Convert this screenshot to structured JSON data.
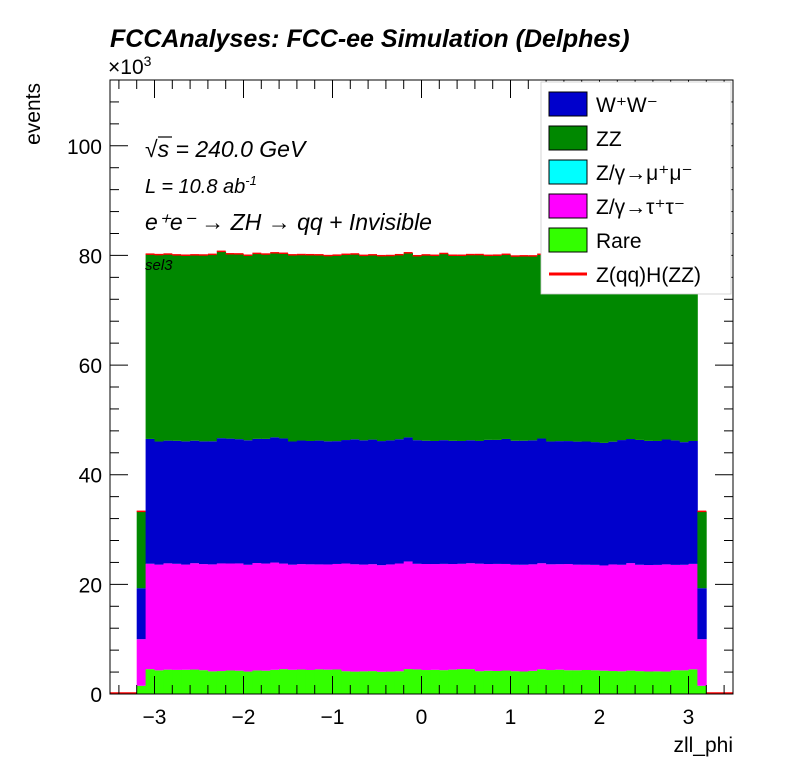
{
  "chart_data": {
    "type": "stacked-histogram",
    "title": "FCCAnalyses: FCC-ee Simulation (Delphes)",
    "xlabel": "zll_phi",
    "ylabel": "events",
    "y_multiplier": "×10³",
    "xlim": [
      -3.5,
      3.5
    ],
    "ylim": [
      0,
      112
    ],
    "x_ticks": [
      -3,
      -2,
      -1,
      0,
      1,
      2,
      3
    ],
    "x_tick_labels": [
      "−3",
      "−2",
      "−1",
      "0",
      "1",
      "2",
      "3"
    ],
    "y_ticks": [
      0,
      20,
      40,
      60,
      80,
      100
    ],
    "y_tick_labels": [
      "0",
      "20",
      "40",
      "60",
      "80",
      "100"
    ],
    "annotations": {
      "sqrt_s": "= 240.0 GeV",
      "lumi": "L = 10.8 ab",
      "lumi_exp": "-1",
      "process": "e⁺e⁻ → ZH → qq + Invisible",
      "selection": "sel3"
    },
    "legend": {
      "position": "top-right",
      "entries": [
        {
          "label": "W⁺W⁻",
          "color": "#0000cc",
          "style": "fill"
        },
        {
          "label": "ZZ",
          "color": "#008800",
          "style": "fill"
        },
        {
          "label": "Z/γ→μ⁺μ⁻",
          "color": "#00ffff",
          "style": "fill"
        },
        {
          "label": "Z/γ→τ⁺τ⁻",
          "color": "#ff00ff",
          "style": "fill"
        },
        {
          "label": "Rare",
          "color": "#33ff00",
          "style": "fill"
        },
        {
          "label": "Z(qq)H(ZZ)",
          "color": "#ff0000",
          "style": "line"
        }
      ]
    },
    "bins": {
      "edges_start": -3.2,
      "width": 0.1,
      "count": 64,
      "edge_bins_note": "first and last bins are lower (half-populated)"
    },
    "series": [
      {
        "name": "Rare",
        "color": "#33ff00",
        "bulk": 4.3,
        "edge": 1.5
      },
      {
        "name": "Z/γ→τ⁺τ⁻",
        "color": "#ff00ff",
        "bulk": 19.4,
        "edge": 8.5
      },
      {
        "name": "Z/γ→μ⁺μ⁻",
        "color": "#00ffff",
        "bulk": 0.0,
        "edge": 0.0
      },
      {
        "name": "W⁺W⁻",
        "color": "#0000cc",
        "bulk": 22.6,
        "edge": 9.3
      },
      {
        "name": "ZZ",
        "color": "#008800",
        "bulk": 33.8,
        "edge": 14.0
      },
      {
        "name": "Z(qq)H(ZZ)",
        "color": "#ff0000",
        "bulk": 0.05,
        "edge": 0.02
      }
    ]
  }
}
